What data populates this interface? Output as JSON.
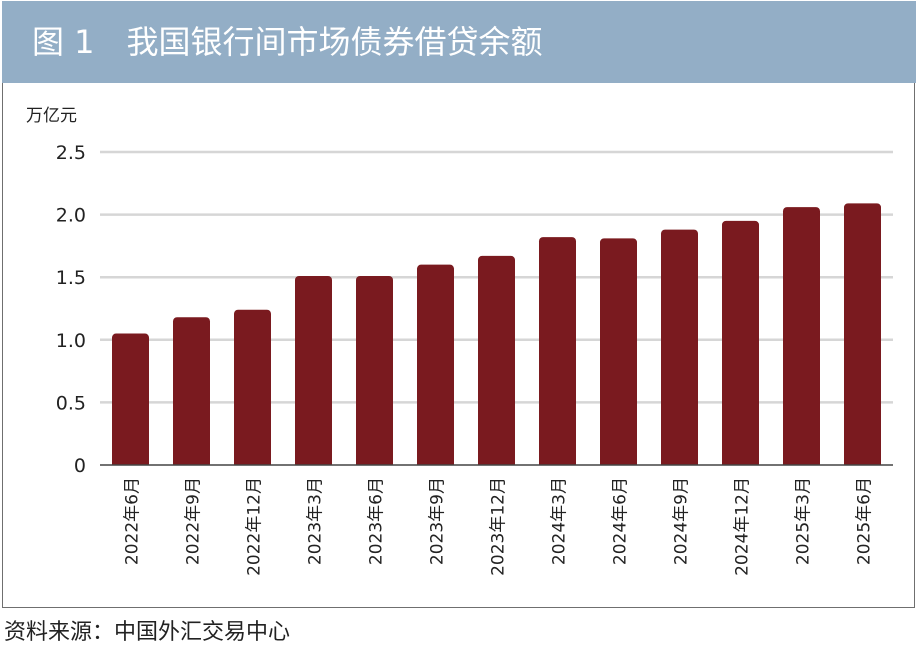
{
  "header": {
    "title": "图 1　我国银行间市场债券借贷余额"
  },
  "source": "资料来源：中国外汇交易中心",
  "colors": {
    "header_bg": "#93aec6",
    "bar": "#7a1a1f",
    "grid": "#d6d6d6"
  },
  "chart_data": {
    "type": "bar",
    "title": "我国银行间市场债券借贷余额",
    "ylabel": "万亿元",
    "xlabel": "",
    "ylim": [
      0,
      2.5
    ],
    "yticks": [
      0,
      0.5,
      1.0,
      1.5,
      2.0,
      2.5
    ],
    "ytick_labels": [
      "0",
      "0.5",
      "1.0",
      "1.5",
      "2.0",
      "2.5"
    ],
    "grid": true,
    "categories": [
      "2022年6月",
      "2022年9月",
      "2022年12月",
      "2023年3月",
      "2023年6月",
      "2023年9月",
      "2023年12月",
      "2024年3月",
      "2024年6月",
      "2024年9月",
      "2024年12月",
      "2025年3月",
      "2025年6月"
    ],
    "values": [
      1.05,
      1.18,
      1.24,
      1.51,
      1.51,
      1.6,
      1.67,
      1.82,
      1.81,
      1.88,
      1.95,
      2.06,
      2.09
    ]
  }
}
